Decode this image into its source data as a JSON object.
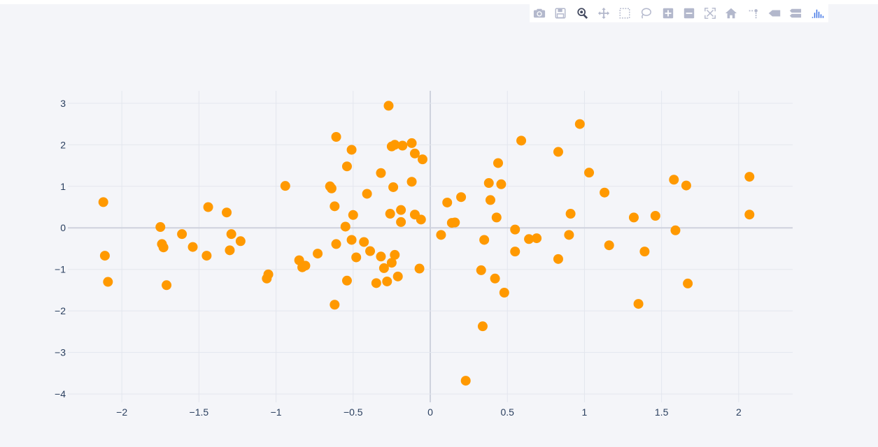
{
  "modebar": {
    "buttons": [
      {
        "name": "camera-icon",
        "title": "Download plot as a png"
      },
      {
        "name": "save-icon",
        "title": "Save"
      },
      {
        "name": "zoom-icon",
        "title": "Zoom"
      },
      {
        "name": "pan-icon",
        "title": "Pan"
      },
      {
        "name": "box-select-icon",
        "title": "Box Select"
      },
      {
        "name": "lasso-select-icon",
        "title": "Lasso Select"
      },
      {
        "name": "zoom-in-icon",
        "title": "Zoom in"
      },
      {
        "name": "zoom-out-icon",
        "title": "Zoom out"
      },
      {
        "name": "autoscale-icon",
        "title": "Autoscale"
      },
      {
        "name": "reset-axes-icon",
        "title": "Reset axes"
      },
      {
        "name": "spike-lines-icon",
        "title": "Toggle Spike Lines"
      },
      {
        "name": "hover-closest-icon",
        "title": "Show closest data on hover"
      },
      {
        "name": "hover-compare-icon",
        "title": "Compare data on hover"
      },
      {
        "name": "plotly-logo-icon",
        "title": "Produced with Plotly"
      }
    ],
    "active": "zoom-icon"
  },
  "chart_data": {
    "type": "scatter",
    "title": "",
    "xlabel": "",
    "ylabel": "",
    "xlim": [
      -2.35,
      2.35
    ],
    "ylim": [
      -4.2,
      3.3
    ],
    "xticks": [
      -2,
      -1.5,
      -1,
      -0.5,
      0,
      0.5,
      1,
      1.5,
      2
    ],
    "xtick_labels": [
      "−2",
      "−1.5",
      "−1",
      "−0.5",
      "0",
      "0.5",
      "1",
      "1.5",
      "2"
    ],
    "yticks": [
      -4,
      -3,
      -2,
      -1,
      0,
      1,
      2,
      3
    ],
    "ytick_labels": [
      "−4",
      "−3",
      "−2",
      "−1",
      "0",
      "1",
      "2",
      "3"
    ],
    "grid": true,
    "colors": {
      "marker": "#ff9900",
      "grid": "#e3e6ee",
      "zeroline": "#ced2dd",
      "background": "#f4f5f9"
    },
    "series": [
      {
        "x": [
          -2.12,
          -2.11,
          -2.09,
          -1.75,
          -1.74,
          -1.73,
          -1.71,
          -1.61,
          -1.54,
          -1.45,
          -1.44,
          -1.32,
          -1.3,
          -1.29,
          -1.23,
          -1.06,
          -1.05,
          -0.94,
          -0.85,
          -0.83,
          -0.81,
          -0.73,
          -0.65,
          -0.64,
          -0.62,
          -0.61,
          -0.61,
          -0.62,
          -0.55,
          -0.54,
          -0.54,
          -0.51,
          -0.51,
          -0.5,
          -0.48,
          -0.43,
          -0.41,
          -0.39,
          -0.35,
          -0.32,
          -0.32,
          -0.3,
          -0.28,
          -0.27,
          -0.26,
          -0.25,
          -0.25,
          -0.24,
          -0.23,
          -0.23,
          -0.21,
          -0.19,
          -0.19,
          -0.18,
          -0.12,
          -0.12,
          -0.1,
          -0.1,
          -0.07,
          -0.06,
          -0.05,
          0.07,
          0.11,
          0.14,
          0.16,
          0.2,
          0.33,
          0.34,
          0.35,
          0.38,
          0.39,
          0.42,
          0.43,
          0.44,
          0.46,
          0.48,
          0.55,
          0.55,
          0.59,
          0.64,
          0.69,
          0.83,
          0.83,
          0.9,
          0.91,
          0.97,
          1.03,
          1.13,
          1.16,
          1.32,
          1.35,
          1.39,
          1.46,
          1.58,
          1.59,
          1.66,
          1.67,
          2.07,
          2.07
        ],
        "y": [
          0.62,
          -0.67,
          -1.3,
          0.02,
          -0.39,
          -0.47,
          -1.38,
          -0.15,
          -0.46,
          -0.67,
          0.5,
          0.37,
          -0.54,
          -0.15,
          -0.32,
          -1.22,
          -1.12,
          1.01,
          -0.78,
          -0.95,
          -0.91,
          -0.62,
          1.0,
          0.95,
          0.52,
          -0.39,
          2.19,
          -1.85,
          0.03,
          1.48,
          -1.27,
          1.88,
          -0.29,
          0.31,
          -0.71,
          -0.34,
          0.82,
          -0.56,
          -1.33,
          1.32,
          -0.69,
          -0.97,
          -1.29,
          2.94,
          0.34,
          1.96,
          -0.84,
          0.98,
          -0.65,
          2.0,
          -1.17,
          0.43,
          0.14,
          1.98,
          2.04,
          1.11,
          0.32,
          1.79,
          -0.98,
          0.2,
          1.65,
          -0.17,
          0.61,
          0.12,
          0.13,
          0.74,
          -1.02,
          -2.37,
          -0.29,
          1.08,
          0.67,
          -1.22,
          0.25,
          1.56,
          1.05,
          -1.56,
          -0.04,
          -0.57,
          2.1,
          -0.27,
          -0.25,
          1.83,
          -0.75,
          -0.17,
          0.34,
          2.5,
          1.33,
          0.85,
          -0.42,
          0.25,
          -1.83,
          -0.57,
          0.29,
          1.16,
          -0.06,
          1.02,
          -1.34,
          1.23,
          0.32
        ]
      },
      {
        "x": [
          0.23
        ],
        "y": [
          -3.68
        ]
      }
    ]
  }
}
